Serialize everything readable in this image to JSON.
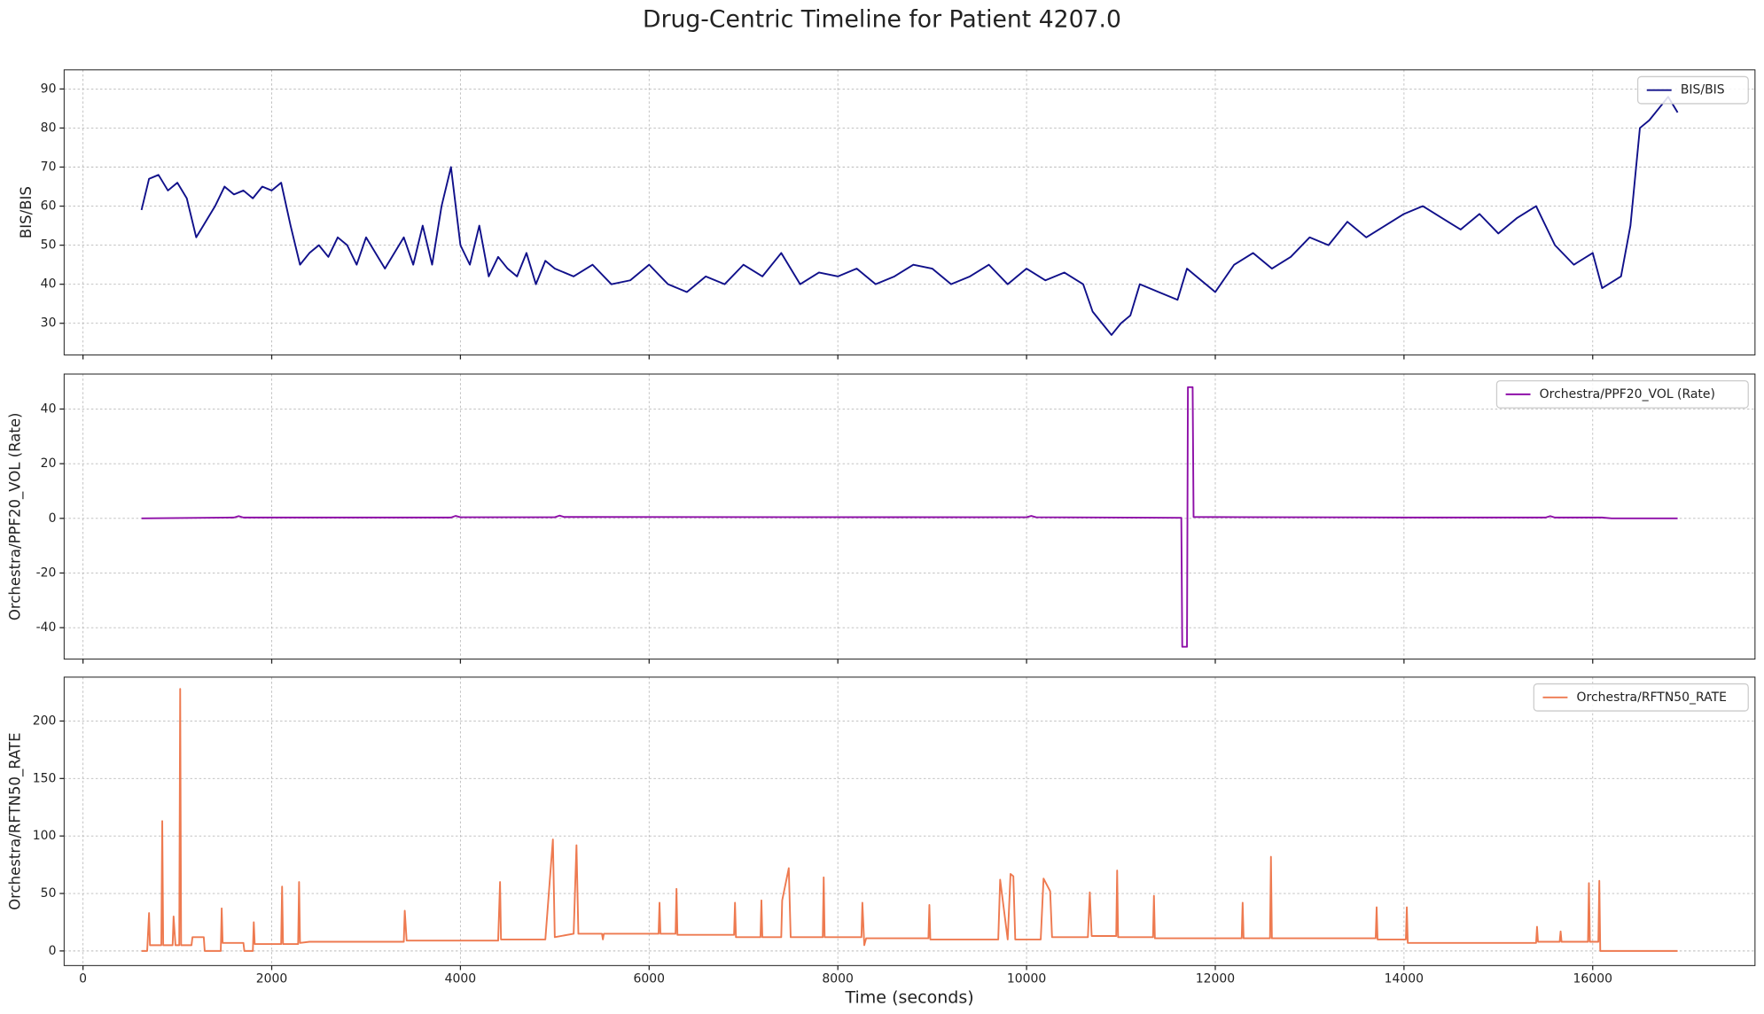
{
  "title": "Drug-Centric Timeline for Patient 4207.0",
  "chart_data": [
    {
      "type": "line",
      "ylabel": "BIS/BIS",
      "legend": "upper right",
      "grid": true,
      "xlim": [
        -200,
        17720
      ],
      "xticks": [
        0,
        2000,
        4000,
        6000,
        8000,
        10000,
        12000,
        14000,
        16000
      ],
      "ylim": [
        21.9,
        94.9
      ],
      "yticks": [
        30,
        40,
        50,
        60,
        70,
        80,
        90
      ],
      "x": [
        620,
        700,
        800,
        900,
        1000,
        1100,
        1200,
        1300,
        1400,
        1500,
        1600,
        1700,
        1800,
        1900,
        2000,
        2100,
        2200,
        2300,
        2400,
        2500,
        2600,
        2700,
        2800,
        2900,
        3000,
        3100,
        3200,
        3300,
        3400,
        3500,
        3600,
        3700,
        3800,
        3900,
        4000,
        4100,
        4200,
        4300,
        4400,
        4500,
        4600,
        4700,
        4800,
        4900,
        5000,
        5200,
        5400,
        5600,
        5800,
        6000,
        6200,
        6400,
        6600,
        6800,
        7000,
        7200,
        7400,
        7600,
        7800,
        8000,
        8200,
        8400,
        8600,
        8800,
        9000,
        9200,
        9400,
        9600,
        9800,
        10000,
        10200,
        10400,
        10600,
        10700,
        10800,
        10900,
        11000,
        11100,
        11200,
        11400,
        11600,
        11700,
        11800,
        12000,
        12200,
        12400,
        12600,
        12800,
        13000,
        13200,
        13400,
        13600,
        13800,
        14000,
        14200,
        14400,
        14600,
        14800,
        15000,
        15200,
        15400,
        15600,
        15800,
        16000,
        16100,
        16300,
        16400,
        16500,
        16600,
        16700,
        16800,
        16900
      ],
      "series": [
        {
          "name": "BIS/BIS",
          "color": "#10108a",
          "values": [
            59,
            67,
            68,
            64,
            66,
            62,
            52,
            56,
            60,
            65,
            63,
            64,
            62,
            65,
            64,
            66,
            55,
            45,
            48,
            50,
            47,
            52,
            50,
            45,
            52,
            48,
            44,
            48,
            52,
            45,
            55,
            45,
            60,
            70,
            50,
            45,
            55,
            42,
            47,
            44,
            42,
            48,
            40,
            46,
            44,
            42,
            45,
            40,
            41,
            45,
            40,
            38,
            42,
            40,
            45,
            42,
            48,
            40,
            43,
            42,
            44,
            40,
            42,
            45,
            44,
            40,
            42,
            45,
            40,
            44,
            41,
            43,
            40,
            33,
            30,
            27,
            30,
            32,
            40,
            38,
            36,
            44,
            42,
            38,
            45,
            48,
            44,
            47,
            52,
            50,
            56,
            52,
            55,
            58,
            60,
            57,
            54,
            58,
            53,
            57,
            60,
            50,
            45,
            48,
            39,
            42,
            55,
            80,
            82,
            85,
            88,
            84
          ]
        }
      ]
    },
    {
      "type": "line",
      "ylabel": "Orchestra/PPF20_VOL (Rate)",
      "legend": "upper right",
      "grid": true,
      "xlim": [
        -200,
        17720
      ],
      "xticks": [
        0,
        2000,
        4000,
        6000,
        8000,
        10000,
        12000,
        14000,
        16000
      ],
      "ylim": [
        -51.5,
        52.8
      ],
      "yticks": [
        -40,
        -20,
        0,
        20,
        40
      ],
      "x": [
        620,
        1600,
        1650,
        1700,
        3900,
        3950,
        4000,
        5000,
        5050,
        5100,
        10000,
        10050,
        10100,
        11640,
        11650,
        11700,
        11710,
        11760,
        11770,
        14000,
        15500,
        15550,
        15600,
        16100,
        16200,
        16900
      ],
      "series": [
        {
          "name": "Orchestra/PPF20_VOL (Rate)",
          "color": "#8e0fa8",
          "values": [
            0,
            0.3,
            0.8,
            0.3,
            0.3,
            0.9,
            0.4,
            0.4,
            1,
            0.5,
            0.4,
            0.9,
            0.4,
            0.2,
            -47,
            -47,
            48,
            48,
            0.5,
            0.3,
            0.3,
            0.8,
            0.3,
            0.3,
            0,
            0
          ]
        }
      ]
    },
    {
      "type": "line",
      "ylabel": "Orchestra/RFTN50_RATE",
      "xlabel": "Time (seconds)",
      "legend": "upper right",
      "grid": true,
      "xlim": [
        -200,
        17720
      ],
      "xticks": [
        0,
        2000,
        4000,
        6000,
        8000,
        10000,
        12000,
        14000,
        16000
      ],
      "ylim": [
        -12.7,
        238.2
      ],
      "yticks": [
        0,
        50,
        100,
        150,
        200
      ],
      "x": [
        620,
        680,
        700,
        710,
        830,
        840,
        850,
        950,
        960,
        980,
        1020,
        1030,
        1040,
        1150,
        1160,
        1280,
        1290,
        1460,
        1470,
        1480,
        1700,
        1710,
        1800,
        1810,
        1820,
        2100,
        2110,
        2120,
        2280,
        2290,
        2300,
        2400,
        3400,
        3410,
        3430,
        4400,
        4420,
        4430,
        4900,
        4980,
        5000,
        5200,
        5230,
        5250,
        5500,
        5510,
        5520,
        6100,
        6110,
        6120,
        6280,
        6290,
        6300,
        6900,
        6910,
        6920,
        7180,
        7190,
        7200,
        7400,
        7410,
        7480,
        7500,
        7840,
        7850,
        7860,
        8250,
        8260,
        8280,
        8300,
        8960,
        8970,
        8980,
        9700,
        9720,
        9800,
        9830,
        9860,
        9880,
        10150,
        10180,
        10250,
        10270,
        10650,
        10670,
        10690,
        10950,
        10960,
        10970,
        11340,
        11350,
        11360,
        12280,
        12290,
        12300,
        12580,
        12590,
        12600,
        13700,
        13710,
        13720,
        14020,
        14030,
        14040,
        15400,
        15410,
        15420,
        15650,
        15660,
        15670,
        15950,
        15960,
        15970,
        16060,
        16070,
        16080,
        16900
      ],
      "series": [
        {
          "name": "Orchestra/RFTN50_RATE",
          "color": "#ee7a50",
          "values": [
            0,
            0,
            33,
            5,
            5,
            113,
            5,
            5,
            30,
            5,
            5,
            228,
            5,
            5,
            12,
            12,
            0,
            0,
            37,
            7,
            7,
            0,
            0,
            25,
            6,
            6,
            56,
            6,
            6,
            60,
            7,
            8,
            8,
            35,
            9,
            9,
            60,
            10,
            10,
            97,
            12,
            15,
            92,
            15,
            15,
            10,
            15,
            15,
            42,
            15,
            15,
            54,
            14,
            14,
            42,
            12,
            12,
            44,
            12,
            12,
            44,
            72,
            12,
            12,
            64,
            12,
            12,
            42,
            5,
            11,
            11,
            40,
            10,
            10,
            62,
            10,
            67,
            65,
            10,
            10,
            63,
            52,
            12,
            12,
            51,
            13,
            13,
            70,
            12,
            12,
            48,
            11,
            11,
            42,
            11,
            11,
            82,
            11,
            11,
            38,
            10,
            10,
            38,
            7,
            7,
            21,
            8,
            8,
            17,
            8,
            8,
            59,
            8,
            8,
            61,
            0,
            0
          ]
        }
      ]
    }
  ]
}
